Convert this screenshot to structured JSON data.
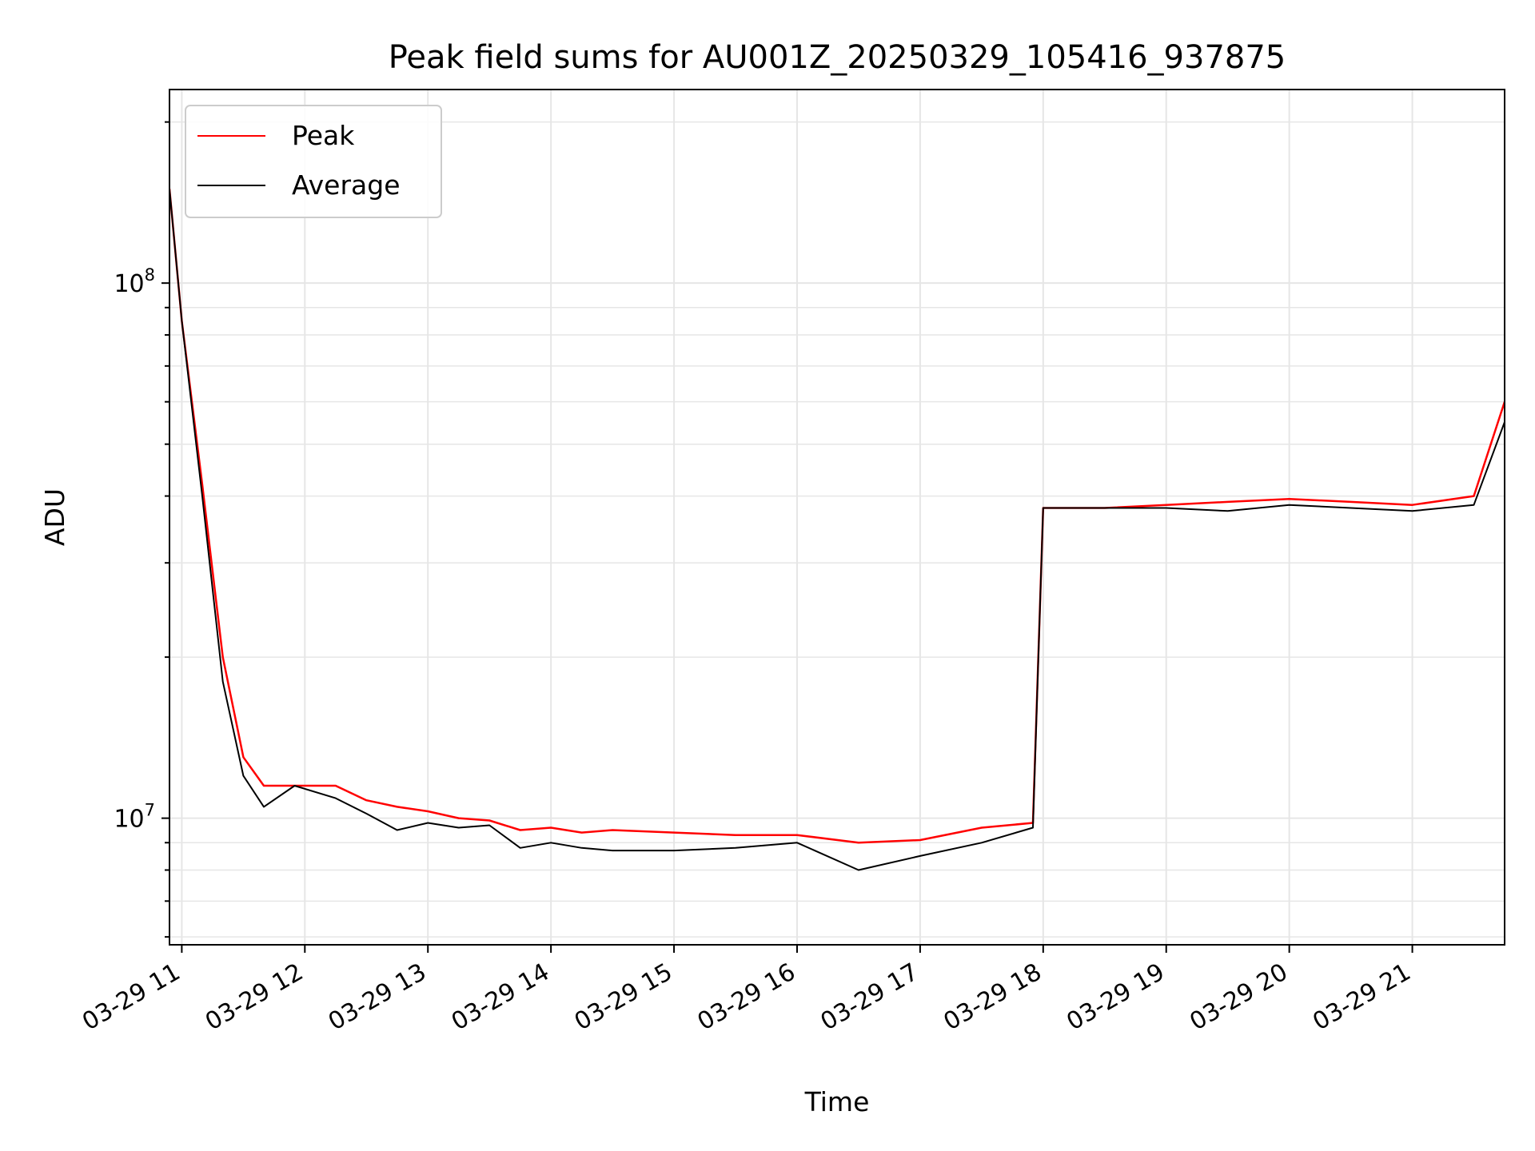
{
  "chart_data": {
    "type": "line",
    "title": "Peak field sums for AU001Z_20250329_105416_937875",
    "xlabel": "Time",
    "ylabel": "ADU",
    "y_scale": "log",
    "ylim": [
      5800000,
      230000000
    ],
    "xlim": [
      "2025-03-29 10:54",
      "2025-03-29 21:45"
    ],
    "x_ticks": [
      "03-29 11",
      "03-29 12",
      "03-29 13",
      "03-29 14",
      "03-29 15",
      "03-29 16",
      "03-29 17",
      "03-29 18",
      "03-29 19",
      "03-29 20",
      "03-29 21"
    ],
    "y_ticks": [
      {
        "value": 10000000,
        "base": "10",
        "exp": "7"
      },
      {
        "value": 100000000,
        "base": "10",
        "exp": "8"
      }
    ],
    "grid": true,
    "legend_position": "upper-left",
    "series": [
      {
        "name": "Peak",
        "color": "#ff0000",
        "x": [
          "2025-03-29 10:54",
          "2025-03-29 11:00",
          "2025-03-29 11:10",
          "2025-03-29 11:20",
          "2025-03-29 11:30",
          "2025-03-29 11:40",
          "2025-03-29 11:55",
          "2025-03-29 12:15",
          "2025-03-29 12:30",
          "2025-03-29 12:45",
          "2025-03-29 13:00",
          "2025-03-29 13:15",
          "2025-03-29 13:30",
          "2025-03-29 13:45",
          "2025-03-29 14:00",
          "2025-03-29 14:15",
          "2025-03-29 14:30",
          "2025-03-29 15:00",
          "2025-03-29 15:30",
          "2025-03-29 16:00",
          "2025-03-29 16:30",
          "2025-03-29 17:00",
          "2025-03-29 17:30",
          "2025-03-29 17:55",
          "2025-03-29 18:00",
          "2025-03-29 18:30",
          "2025-03-29 19:00",
          "2025-03-29 19:30",
          "2025-03-29 20:00",
          "2025-03-29 20:30",
          "2025-03-29 21:00",
          "2025-03-29 21:30",
          "2025-03-29 21:45"
        ],
        "values": [
          150000000,
          85000000,
          42000000,
          20000000,
          13000000,
          11500000,
          11500000,
          11500000,
          10800000,
          10500000,
          10300000,
          10000000,
          9900000,
          9500000,
          9600000,
          9400000,
          9500000,
          9400000,
          9300000,
          9300000,
          9000000,
          9100000,
          9600000,
          9800000,
          38000000,
          38000000,
          38500000,
          39000000,
          39500000,
          39000000,
          38500000,
          40000000,
          60000000
        ]
      },
      {
        "name": "Average",
        "color": "#000000",
        "x": [
          "2025-03-29 10:54",
          "2025-03-29 11:00",
          "2025-03-29 11:10",
          "2025-03-29 11:20",
          "2025-03-29 11:30",
          "2025-03-29 11:40",
          "2025-03-29 11:55",
          "2025-03-29 12:15",
          "2025-03-29 12:30",
          "2025-03-29 12:45",
          "2025-03-29 13:00",
          "2025-03-29 13:15",
          "2025-03-29 13:30",
          "2025-03-29 13:45",
          "2025-03-29 14:00",
          "2025-03-29 14:15",
          "2025-03-29 14:30",
          "2025-03-29 15:00",
          "2025-03-29 15:30",
          "2025-03-29 16:00",
          "2025-03-29 16:30",
          "2025-03-29 17:00",
          "2025-03-29 17:30",
          "2025-03-29 17:55",
          "2025-03-29 18:00",
          "2025-03-29 18:30",
          "2025-03-29 19:00",
          "2025-03-29 19:30",
          "2025-03-29 20:00",
          "2025-03-29 20:30",
          "2025-03-29 21:00",
          "2025-03-29 21:30",
          "2025-03-29 21:45"
        ],
        "values": [
          150000000,
          85000000,
          40000000,
          18000000,
          12000000,
          10500000,
          11500000,
          10900000,
          10200000,
          9500000,
          9800000,
          9600000,
          9700000,
          8800000,
          9000000,
          8800000,
          8700000,
          8700000,
          8800000,
          9000000,
          8000000,
          8500000,
          9000000,
          9600000,
          38000000,
          38000000,
          38000000,
          37500000,
          38500000,
          38000000,
          37500000,
          38500000,
          55000000
        ]
      }
    ]
  }
}
